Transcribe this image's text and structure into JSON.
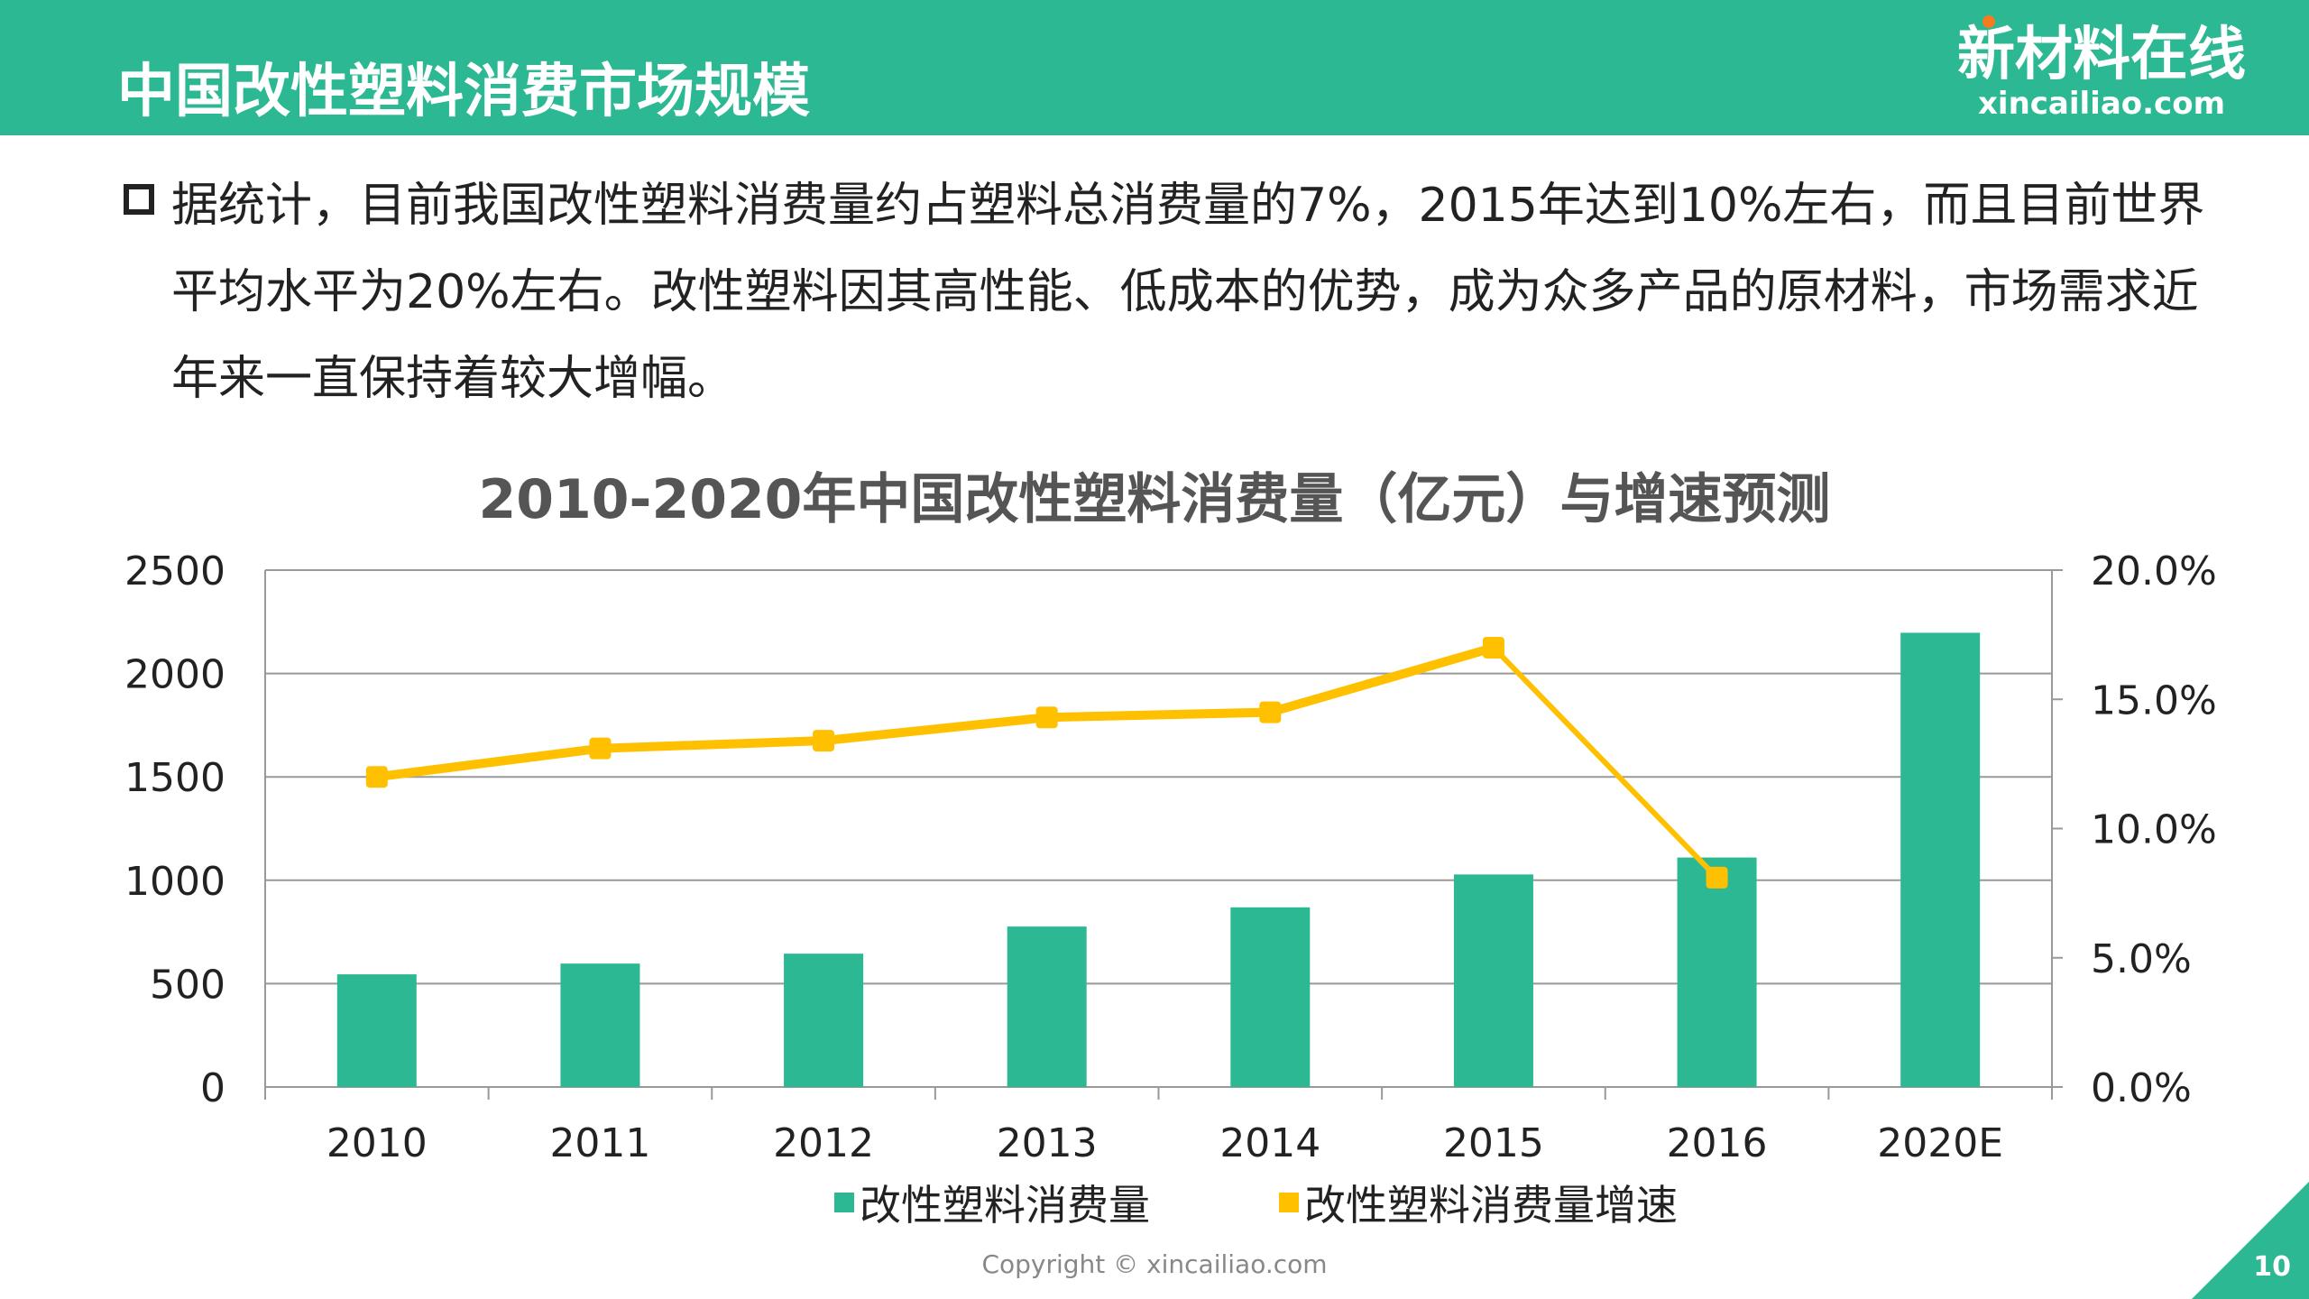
{
  "header": {
    "title": "中国改性塑料消费市场规模",
    "logo_cn": "新材料在线",
    "logo_en": "xincailiao.com"
  },
  "paragraph": "据统计，目前我国改性塑料消费量约占塑料总消费量的7%，2015年达到10%左右，而且目前世界平均水平为20%左右。改性塑料因其高性能、低成本的优势，成为众多产品的原材料，市场需求近年来一直保持着较大增幅。",
  "footer": {
    "copyright": "Copyright © xincailiao.com",
    "page": "10"
  },
  "watermark": "新材料在线 xincailiao.com",
  "chart_data": {
    "type": "bar+line",
    "title": "2010-2020年中国改性塑料消费量（亿元）与增速预测",
    "categories": [
      "2010",
      "2011",
      "2012",
      "2013",
      "2014",
      "2015",
      "2016",
      "2020E"
    ],
    "series": [
      {
        "name": "改性塑料消费量",
        "type": "bar",
        "axis": "left",
        "color": "#2db894",
        "values": [
          545,
          597,
          645,
          776,
          869,
          1028,
          1110,
          2197
        ]
      },
      {
        "name": "改性塑料消费量增速",
        "type": "line",
        "axis": "right",
        "color": "#ffc000",
        "values": [
          12.0,
          13.1,
          13.4,
          14.3,
          14.5,
          17.0,
          8.1,
          null
        ]
      }
    ],
    "y_left": {
      "range": [
        0,
        2500
      ],
      "ticks": [
        "0",
        "500",
        "1000",
        "1500",
        "2000",
        "2500"
      ]
    },
    "y_right": {
      "range": [
        0,
        20
      ],
      "ticks": [
        "0.0%",
        "5.0%",
        "10.0%",
        "15.0%",
        "20.0%"
      ]
    },
    "grid": true,
    "legend": "bottom"
  }
}
